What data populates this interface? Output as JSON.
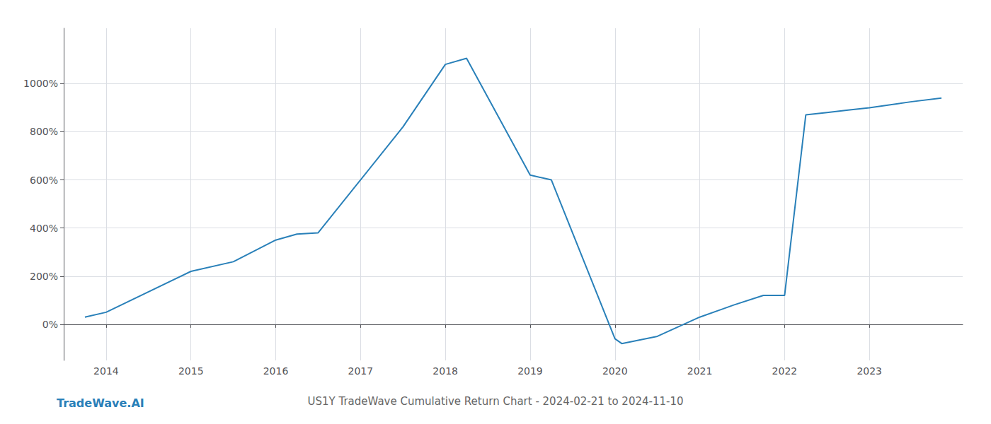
{
  "chart_data": {
    "type": "line",
    "title": "US1Y TradeWave Cumulative Return Chart - 2024-02-21 to 2024-11-10",
    "annotations": [
      "TradeWave.AI"
    ],
    "x": [
      2013.75,
      2014.0,
      2015.0,
      2015.5,
      2016.0,
      2016.25,
      2016.5,
      2017.5,
      2018.0,
      2018.25,
      2019.0,
      2019.25,
      2020.0,
      2020.08,
      2020.5,
      2021.0,
      2021.4,
      2021.75,
      2022.0,
      2022.25,
      2022.5,
      2022.75,
      2023.0,
      2023.5,
      2023.85
    ],
    "values": [
      30,
      50,
      220,
      260,
      350,
      375,
      380,
      820,
      1080,
      1105,
      620,
      600,
      -60,
      -80,
      -50,
      30,
      80,
      120,
      120,
      870,
      880,
      890,
      900,
      925,
      940
    ],
    "color": "#2980b9",
    "xlim": [
      2013.5,
      2024.1
    ],
    "ylim": [
      -150,
      1230
    ],
    "xticks": [
      2014,
      2015,
      2016,
      2017,
      2018,
      2019,
      2020,
      2021,
      2022,
      2023
    ],
    "yticks": [
      {
        "value": 0,
        "label": "0%"
      },
      {
        "value": 200,
        "label": "200%"
      },
      {
        "value": 400,
        "label": "400%"
      },
      {
        "value": 600,
        "label": "600%"
      },
      {
        "value": 800,
        "label": "800%"
      },
      {
        "value": 1000,
        "label": "1000%"
      }
    ],
    "grid": true
  }
}
